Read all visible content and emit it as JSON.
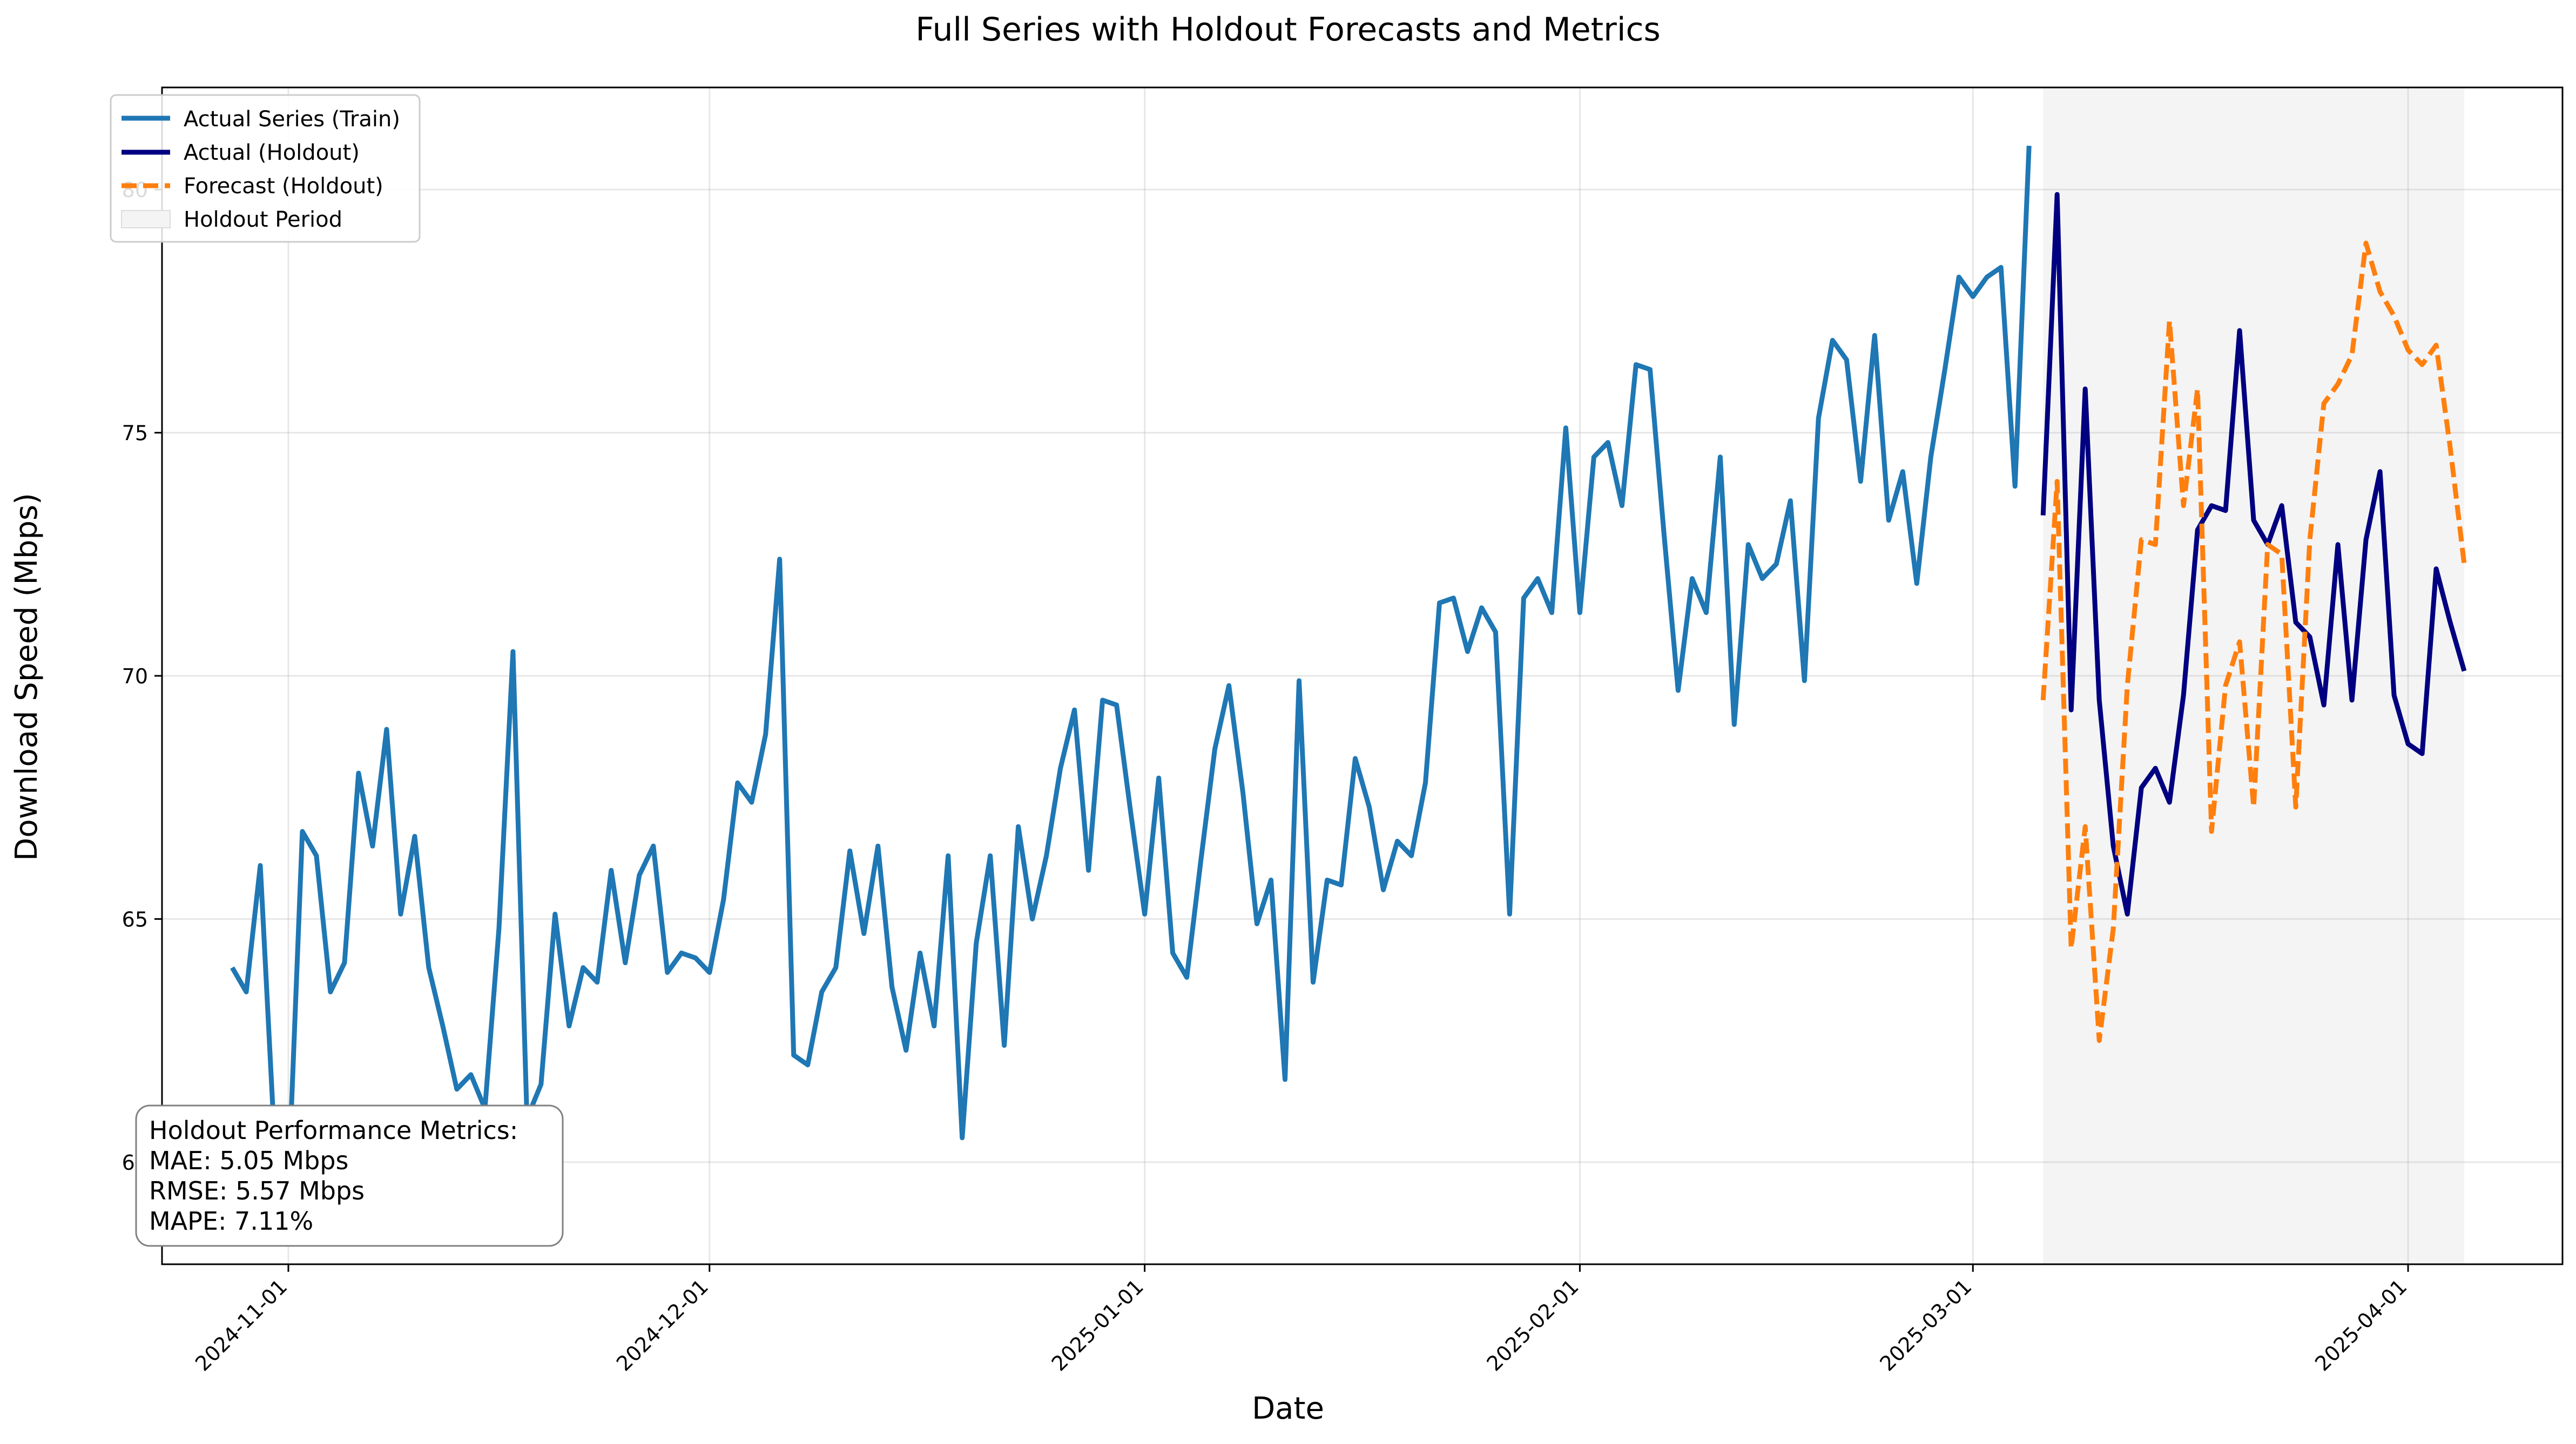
{
  "chart_data": {
    "type": "line",
    "title": "Full Series with Holdout Forecasts and Metrics",
    "xlabel": "Date",
    "ylabel": "Download Speed (Mbps)",
    "ylim": [
      57.9,
      82.1
    ],
    "xlim": [
      "2024-10-23",
      "2025-04-12"
    ],
    "grid": true,
    "legend_position": "top-left",
    "x_ticks": [
      "2024-11-01",
      "2024-12-01",
      "2025-01-01",
      "2025-02-01",
      "2025-03-01",
      "2025-04-01"
    ],
    "y_ticks": [
      60,
      65,
      70,
      75,
      80
    ],
    "holdout_period": {
      "start": "2025-03-06",
      "end": "2025-04-05",
      "label": "Holdout Period",
      "color": "#f4f4f4"
    },
    "series": [
      {
        "name": "Actual Series (Train)",
        "color": "#1f77b4",
        "style": "solid",
        "points": [
          [
            "2024-10-28",
            64.0
          ],
          [
            "2024-10-29",
            63.5
          ],
          [
            "2024-10-30",
            66.1
          ],
          [
            "2024-10-31",
            60.5
          ],
          [
            "2024-11-01",
            59.5
          ],
          [
            "2024-11-02",
            66.8
          ],
          [
            "2024-11-03",
            66.3
          ],
          [
            "2024-11-04",
            63.5
          ],
          [
            "2024-11-05",
            64.1
          ],
          [
            "2024-11-06",
            68.0
          ],
          [
            "2024-11-07",
            66.5
          ],
          [
            "2024-11-08",
            68.9
          ],
          [
            "2024-11-09",
            65.1
          ],
          [
            "2024-11-10",
            66.7
          ],
          [
            "2024-11-11",
            64.0
          ],
          [
            "2024-11-12",
            62.8
          ],
          [
            "2024-11-13",
            61.5
          ],
          [
            "2024-11-14",
            61.8
          ],
          [
            "2024-11-15",
            61.1
          ],
          [
            "2024-11-16",
            64.8
          ],
          [
            "2024-11-17",
            70.5
          ],
          [
            "2024-11-18",
            60.9
          ],
          [
            "2024-11-19",
            61.6
          ],
          [
            "2024-11-20",
            65.1
          ],
          [
            "2024-11-21",
            62.8
          ],
          [
            "2024-11-22",
            64.0
          ],
          [
            "2024-11-23",
            63.7
          ],
          [
            "2024-11-24",
            66.0
          ],
          [
            "2024-11-25",
            64.1
          ],
          [
            "2024-11-26",
            65.9
          ],
          [
            "2024-11-27",
            66.5
          ],
          [
            "2024-11-28",
            63.9
          ],
          [
            "2024-11-29",
            64.3
          ],
          [
            "2024-11-30",
            64.2
          ],
          [
            "2024-12-01",
            63.9
          ],
          [
            "2024-12-02",
            65.4
          ],
          [
            "2024-12-03",
            67.8
          ],
          [
            "2024-12-04",
            67.4
          ],
          [
            "2024-12-05",
            68.8
          ],
          [
            "2024-12-06",
            72.4
          ],
          [
            "2024-12-07",
            62.2
          ],
          [
            "2024-12-08",
            62.0
          ],
          [
            "2024-12-09",
            63.5
          ],
          [
            "2024-12-10",
            64.0
          ],
          [
            "2024-12-11",
            66.4
          ],
          [
            "2024-12-12",
            64.7
          ],
          [
            "2024-12-13",
            66.5
          ],
          [
            "2024-12-14",
            63.6
          ],
          [
            "2024-12-15",
            62.3
          ],
          [
            "2024-12-16",
            64.3
          ],
          [
            "2024-12-17",
            62.8
          ],
          [
            "2024-12-18",
            66.3
          ],
          [
            "2024-12-19",
            60.5
          ],
          [
            "2024-12-20",
            64.5
          ],
          [
            "2024-12-21",
            66.3
          ],
          [
            "2024-12-22",
            62.4
          ],
          [
            "2024-12-23",
            66.9
          ],
          [
            "2024-12-24",
            65.0
          ],
          [
            "2024-12-25",
            66.3
          ],
          [
            "2024-12-26",
            68.1
          ],
          [
            "2024-12-27",
            69.3
          ],
          [
            "2024-12-28",
            66.0
          ],
          [
            "2024-12-29",
            69.5
          ],
          [
            "2024-12-30",
            69.4
          ],
          [
            "2024-12-31",
            67.2
          ],
          [
            "2025-01-01",
            65.1
          ],
          [
            "2025-01-02",
            67.9
          ],
          [
            "2025-01-03",
            64.3
          ],
          [
            "2025-01-04",
            63.8
          ],
          [
            "2025-01-05",
            66.2
          ],
          [
            "2025-01-06",
            68.5
          ],
          [
            "2025-01-07",
            69.8
          ],
          [
            "2025-01-08",
            67.6
          ],
          [
            "2025-01-09",
            64.9
          ],
          [
            "2025-01-10",
            65.8
          ],
          [
            "2025-01-11",
            61.7
          ],
          [
            "2025-01-12",
            69.9
          ],
          [
            "2025-01-13",
            63.7
          ],
          [
            "2025-01-14",
            65.8
          ],
          [
            "2025-01-15",
            65.7
          ],
          [
            "2025-01-16",
            68.3
          ],
          [
            "2025-01-17",
            67.3
          ],
          [
            "2025-01-18",
            65.6
          ],
          [
            "2025-01-19",
            66.6
          ],
          [
            "2025-01-20",
            66.3
          ],
          [
            "2025-01-21",
            67.8
          ],
          [
            "2025-01-22",
            71.5
          ],
          [
            "2025-01-23",
            71.6
          ],
          [
            "2025-01-24",
            70.5
          ],
          [
            "2025-01-25",
            71.4
          ],
          [
            "2025-01-26",
            70.9
          ],
          [
            "2025-01-27",
            65.1
          ],
          [
            "2025-01-28",
            71.6
          ],
          [
            "2025-01-29",
            72.0
          ],
          [
            "2025-01-30",
            71.3
          ],
          [
            "2025-01-31",
            75.1
          ],
          [
            "2025-02-01",
            71.3
          ],
          [
            "2025-02-02",
            74.5
          ],
          [
            "2025-02-03",
            74.8
          ],
          [
            "2025-02-04",
            73.5
          ],
          [
            "2025-02-05",
            76.4
          ],
          [
            "2025-02-06",
            76.3
          ],
          [
            "2025-02-07",
            72.9
          ],
          [
            "2025-02-08",
            69.7
          ],
          [
            "2025-02-09",
            72.0
          ],
          [
            "2025-02-10",
            71.3
          ],
          [
            "2025-02-11",
            74.5
          ],
          [
            "2025-02-12",
            69.0
          ],
          [
            "2025-02-13",
            72.7
          ],
          [
            "2025-02-14",
            72.0
          ],
          [
            "2025-02-15",
            72.3
          ],
          [
            "2025-02-16",
            73.6
          ],
          [
            "2025-02-17",
            69.9
          ],
          [
            "2025-02-18",
            75.3
          ],
          [
            "2025-02-19",
            76.9
          ],
          [
            "2025-02-20",
            76.5
          ],
          [
            "2025-02-21",
            74.0
          ],
          [
            "2025-02-22",
            77.0
          ],
          [
            "2025-02-23",
            73.2
          ],
          [
            "2025-02-24",
            74.2
          ],
          [
            "2025-02-25",
            71.9
          ],
          [
            "2025-02-26",
            74.5
          ],
          [
            "2025-02-27",
            76.3
          ],
          [
            "2025-02-28",
            78.2
          ],
          [
            "2025-03-01",
            77.8
          ],
          [
            "2025-03-02",
            78.2
          ],
          [
            "2025-03-03",
            78.4
          ],
          [
            "2025-03-04",
            73.9
          ],
          [
            "2025-03-05",
            80.9
          ]
        ]
      },
      {
        "name": "Actual (Holdout)",
        "color": "#000080",
        "style": "solid",
        "points": [
          [
            "2025-03-06",
            73.3
          ],
          [
            "2025-03-07",
            79.9
          ],
          [
            "2025-03-08",
            69.3
          ],
          [
            "2025-03-09",
            75.9
          ],
          [
            "2025-03-10",
            69.5
          ],
          [
            "2025-03-11",
            66.5
          ],
          [
            "2025-03-12",
            65.1
          ],
          [
            "2025-03-13",
            67.7
          ],
          [
            "2025-03-14",
            68.1
          ],
          [
            "2025-03-15",
            67.4
          ],
          [
            "2025-03-16",
            69.6
          ],
          [
            "2025-03-17",
            73.0
          ],
          [
            "2025-03-18",
            73.5
          ],
          [
            "2025-03-19",
            73.4
          ],
          [
            "2025-03-20",
            77.1
          ],
          [
            "2025-03-21",
            73.2
          ],
          [
            "2025-03-22",
            72.7
          ],
          [
            "2025-03-23",
            73.5
          ],
          [
            "2025-03-24",
            71.1
          ],
          [
            "2025-03-25",
            70.8
          ],
          [
            "2025-03-26",
            69.4
          ],
          [
            "2025-03-27",
            72.7
          ],
          [
            "2025-03-28",
            69.5
          ],
          [
            "2025-03-29",
            72.8
          ],
          [
            "2025-03-30",
            74.2
          ],
          [
            "2025-03-31",
            69.6
          ],
          [
            "2025-04-01",
            68.6
          ],
          [
            "2025-04-02",
            68.4
          ],
          [
            "2025-04-03",
            72.2
          ],
          [
            "2025-04-04",
            71.1
          ],
          [
            "2025-04-05",
            70.1
          ]
        ]
      },
      {
        "name": "Forecast (Holdout)",
        "color": "#ff7f0e",
        "style": "dashed",
        "points": [
          [
            "2025-03-06",
            69.5
          ],
          [
            "2025-03-07",
            74.0
          ],
          [
            "2025-03-08",
            64.4
          ],
          [
            "2025-03-09",
            66.9
          ],
          [
            "2025-03-10",
            62.5
          ],
          [
            "2025-03-11",
            64.8
          ],
          [
            "2025-03-12",
            69.8
          ],
          [
            "2025-03-13",
            72.8
          ],
          [
            "2025-03-14",
            72.7
          ],
          [
            "2025-03-15",
            77.3
          ],
          [
            "2025-03-16",
            73.5
          ],
          [
            "2025-03-17",
            75.9
          ],
          [
            "2025-03-18",
            66.8
          ],
          [
            "2025-03-19",
            69.8
          ],
          [
            "2025-03-20",
            70.7
          ],
          [
            "2025-03-21",
            67.3
          ],
          [
            "2025-03-22",
            72.7
          ],
          [
            "2025-03-23",
            72.5
          ],
          [
            "2025-03-24",
            67.3
          ],
          [
            "2025-03-25",
            72.8
          ],
          [
            "2025-03-26",
            75.6
          ],
          [
            "2025-03-27",
            76.0
          ],
          [
            "2025-03-28",
            76.6
          ],
          [
            "2025-03-29",
            78.9
          ],
          [
            "2025-03-30",
            77.9
          ],
          [
            "2025-03-31",
            77.4
          ],
          [
            "2025-04-01",
            76.7
          ],
          [
            "2025-04-02",
            76.4
          ],
          [
            "2025-04-03",
            76.8
          ],
          [
            "2025-04-04",
            74.7
          ],
          [
            "2025-04-05",
            72.3
          ]
        ]
      }
    ],
    "metrics_box": {
      "title": "Holdout Performance Metrics:",
      "lines": [
        "MAE: 5.05 Mbps",
        "RMSE: 5.57 Mbps",
        "MAPE: 7.11%"
      ]
    }
  }
}
